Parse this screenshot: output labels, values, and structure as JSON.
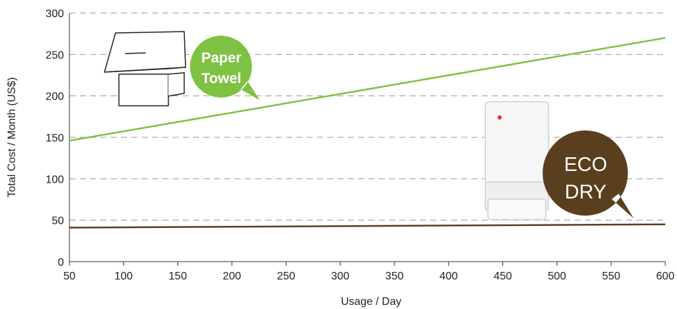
{
  "chart_data": {
    "type": "line",
    "x_label": "Usage / Day",
    "y_label": "Total Cost / Month (US$)",
    "x": [
      50,
      600
    ],
    "series": [
      {
        "name": "Paper Towel",
        "color": "#7dc242",
        "values": [
          146,
          270
        ]
      },
      {
        "name": "ECO DRY",
        "color": "#5a3f1f",
        "values": [
          41,
          45
        ]
      }
    ],
    "xlim": [
      50,
      600
    ],
    "ylim": [
      0,
      300
    ],
    "xticks": [
      50,
      100,
      150,
      200,
      250,
      300,
      350,
      400,
      450,
      500,
      550,
      600
    ],
    "yticks": [
      0,
      50,
      100,
      150,
      200,
      250,
      300
    ],
    "grid": true
  }
}
